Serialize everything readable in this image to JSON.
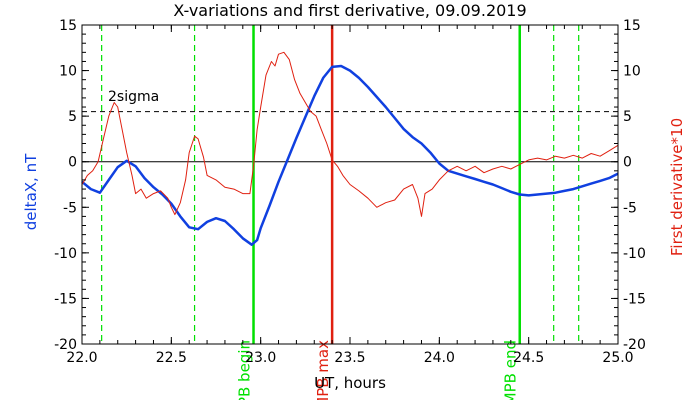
{
  "chart_data": {
    "type": "line",
    "title": "X-variations and first derivative, 09.09.2019",
    "xlabel": "UT, hours",
    "ylabel_left": "deltaX, nT",
    "ylabel_right": "First derivative*10",
    "xlim": [
      22.0,
      25.0
    ],
    "ylim": [
      -20,
      15
    ],
    "x_ticks": [
      "22.0",
      "22.5",
      "23.0",
      "23.5",
      "24.0",
      "24.5",
      "25.0"
    ],
    "y_ticks": [
      "15",
      "10",
      "5",
      "0",
      "-5",
      "-10",
      "-15",
      "-20"
    ],
    "x_tick_values": [
      22.0,
      22.5,
      23.0,
      23.5,
      24.0,
      24.5,
      25.0
    ],
    "y_tick_values": [
      15,
      10,
      5,
      0,
      -5,
      -10,
      -15,
      -20
    ],
    "sigma_label": "2sigma",
    "sigma_level": 5.5,
    "zero_line": 0,
    "colors": {
      "deltax": "#1040e0",
      "derivative": "#e02010",
      "green": "#00e000",
      "red": "#e02010"
    },
    "series": [
      {
        "name": "deltaX",
        "color": "#1040e0",
        "points": [
          [
            22.0,
            -2.2
          ],
          [
            22.05,
            -3.0
          ],
          [
            22.1,
            -3.4
          ],
          [
            22.15,
            -2.0
          ],
          [
            22.2,
            -0.6
          ],
          [
            22.25,
            0.1
          ],
          [
            22.3,
            -0.5
          ],
          [
            22.35,
            -1.8
          ],
          [
            22.4,
            -2.8
          ],
          [
            22.45,
            -3.6
          ],
          [
            22.5,
            -4.6
          ],
          [
            22.55,
            -6.0
          ],
          [
            22.6,
            -7.2
          ],
          [
            22.65,
            -7.4
          ],
          [
            22.7,
            -6.6
          ],
          [
            22.75,
            -6.2
          ],
          [
            22.8,
            -6.5
          ],
          [
            22.85,
            -7.4
          ],
          [
            22.9,
            -8.4
          ],
          [
            22.95,
            -9.1
          ],
          [
            22.98,
            -8.6
          ],
          [
            23.0,
            -7.3
          ],
          [
            23.05,
            -4.8
          ],
          [
            23.1,
            -2.2
          ],
          [
            23.15,
            0.2
          ],
          [
            23.2,
            2.6
          ],
          [
            23.25,
            4.9
          ],
          [
            23.3,
            7.2
          ],
          [
            23.35,
            9.2
          ],
          [
            23.4,
            10.4
          ],
          [
            23.45,
            10.5
          ],
          [
            23.5,
            10.0
          ],
          [
            23.55,
            9.2
          ],
          [
            23.6,
            8.2
          ],
          [
            23.65,
            7.1
          ],
          [
            23.7,
            6.0
          ],
          [
            23.75,
            4.8
          ],
          [
            23.8,
            3.6
          ],
          [
            23.85,
            2.7
          ],
          [
            23.9,
            2.0
          ],
          [
            23.95,
            1.0
          ],
          [
            24.0,
            -0.2
          ],
          [
            24.05,
            -1.0
          ],
          [
            24.1,
            -1.3
          ],
          [
            24.15,
            -1.6
          ],
          [
            24.2,
            -1.9
          ],
          [
            24.25,
            -2.2
          ],
          [
            24.3,
            -2.5
          ],
          [
            24.35,
            -2.9
          ],
          [
            24.4,
            -3.3
          ],
          [
            24.45,
            -3.6
          ],
          [
            24.5,
            -3.7
          ],
          [
            24.55,
            -3.6
          ],
          [
            24.6,
            -3.5
          ],
          [
            24.65,
            -3.4
          ],
          [
            24.7,
            -3.2
          ],
          [
            24.75,
            -3.0
          ],
          [
            24.8,
            -2.7
          ],
          [
            24.85,
            -2.4
          ],
          [
            24.9,
            -2.1
          ],
          [
            24.95,
            -1.8
          ],
          [
            25.0,
            -1.3
          ]
        ]
      },
      {
        "name": "First derivative*10",
        "color": "#e02010",
        "points": [
          [
            22.0,
            -2.5
          ],
          [
            22.03,
            -1.5
          ],
          [
            22.06,
            -1.0
          ],
          [
            22.09,
            0.0
          ],
          [
            22.12,
            2.5
          ],
          [
            22.15,
            5.0
          ],
          [
            22.18,
            6.5
          ],
          [
            22.2,
            6.0
          ],
          [
            22.22,
            4.0
          ],
          [
            22.25,
            1.0
          ],
          [
            22.28,
            -1.5
          ],
          [
            22.3,
            -3.5
          ],
          [
            22.33,
            -3.0
          ],
          [
            22.36,
            -4.0
          ],
          [
            22.4,
            -3.5
          ],
          [
            22.44,
            -3.2
          ],
          [
            22.48,
            -4.0
          ],
          [
            22.5,
            -5.0
          ],
          [
            22.52,
            -5.8
          ],
          [
            22.55,
            -4.5
          ],
          [
            22.58,
            -2.0
          ],
          [
            22.6,
            1.0
          ],
          [
            22.63,
            2.8
          ],
          [
            22.65,
            2.5
          ],
          [
            22.68,
            0.5
          ],
          [
            22.7,
            -1.5
          ],
          [
            22.75,
            -2.0
          ],
          [
            22.8,
            -2.8
          ],
          [
            22.85,
            -3.0
          ],
          [
            22.9,
            -3.5
          ],
          [
            22.94,
            -3.5
          ],
          [
            22.96,
            -0.5
          ],
          [
            22.98,
            3.5
          ],
          [
            23.0,
            6.0
          ],
          [
            23.03,
            9.5
          ],
          [
            23.06,
            11.0
          ],
          [
            23.08,
            10.5
          ],
          [
            23.1,
            11.8
          ],
          [
            23.13,
            12.0
          ],
          [
            23.16,
            11.2
          ],
          [
            23.19,
            9.0
          ],
          [
            23.22,
            7.5
          ],
          [
            23.25,
            6.5
          ],
          [
            23.28,
            5.5
          ],
          [
            23.31,
            5.0
          ],
          [
            23.34,
            3.5
          ],
          [
            23.37,
            2.0
          ],
          [
            23.4,
            0.2
          ],
          [
            23.43,
            -0.5
          ],
          [
            23.46,
            -1.5
          ],
          [
            23.5,
            -2.5
          ],
          [
            23.55,
            -3.2
          ],
          [
            23.6,
            -4.0
          ],
          [
            23.65,
            -5.0
          ],
          [
            23.7,
            -4.5
          ],
          [
            23.75,
            -4.2
          ],
          [
            23.8,
            -3.0
          ],
          [
            23.85,
            -2.5
          ],
          [
            23.88,
            -4.0
          ],
          [
            23.9,
            -6.0
          ],
          [
            23.92,
            -3.5
          ],
          [
            23.96,
            -3.0
          ],
          [
            24.0,
            -2.0
          ],
          [
            24.05,
            -1.0
          ],
          [
            24.1,
            -0.5
          ],
          [
            24.15,
            -1.0
          ],
          [
            24.2,
            -0.5
          ],
          [
            24.25,
            -1.2
          ],
          [
            24.3,
            -0.8
          ],
          [
            24.35,
            -0.5
          ],
          [
            24.4,
            -0.8
          ],
          [
            24.45,
            -0.3
          ],
          [
            24.5,
            0.2
          ],
          [
            24.55,
            0.4
          ],
          [
            24.6,
            0.2
          ],
          [
            24.65,
            0.6
          ],
          [
            24.7,
            0.4
          ],
          [
            24.75,
            0.7
          ],
          [
            24.8,
            0.4
          ],
          [
            24.85,
            0.9
          ],
          [
            24.9,
            0.6
          ],
          [
            24.95,
            1.2
          ],
          [
            25.0,
            1.8
          ]
        ]
      }
    ],
    "vlines": [
      {
        "x": 22.11,
        "style": "dashed",
        "color": "#00e000",
        "label": ""
      },
      {
        "x": 22.63,
        "style": "dashed",
        "color": "#00e000",
        "label": ""
      },
      {
        "x": 22.96,
        "style": "solid",
        "color": "#00e000",
        "label": "MPB begin"
      },
      {
        "x": 23.4,
        "style": "solid",
        "color": "#e02010",
        "label": "MPB max"
      },
      {
        "x": 24.45,
        "style": "solid",
        "color": "#00e000",
        "label": "MPB end"
      },
      {
        "x": 24.64,
        "style": "dashed",
        "color": "#00e000",
        "label": ""
      },
      {
        "x": 24.78,
        "style": "dashed",
        "color": "#00e000",
        "label": ""
      }
    ]
  }
}
